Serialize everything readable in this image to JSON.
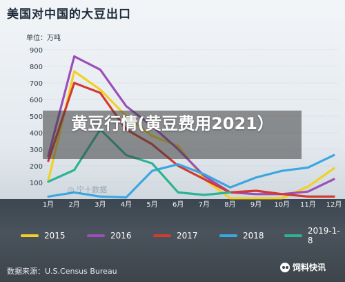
{
  "title": "美国对中国的大豆出口",
  "overlay_text": "黄豆行情(黄豆费用2021）",
  "watermark_text": "宁十数据",
  "source": "数据来源：U.S.Census Bureau",
  "brand": "饲料快讯",
  "chart_data": {
    "type": "line",
    "title": "美国对中国的大豆出口",
    "ylabel": "单位：万吨",
    "ylim": [
      0,
      900
    ],
    "yticks": [
      "100",
      "200",
      "300",
      "400",
      "500",
      "600",
      "700",
      "800",
      "900"
    ],
    "categories": [
      "1月",
      "2月",
      "3月",
      "4月",
      "5月",
      "6月",
      "7月",
      "8月",
      "9月",
      "10月",
      "11月",
      "12月"
    ],
    "series": [
      {
        "name": "2015",
        "color": "#f2d024",
        "values": [
          110,
          770,
          660,
          500,
          380,
          320,
          120,
          5,
          5,
          5,
          75,
          185
        ]
      },
      {
        "name": "2016",
        "color": "#9b4fb8",
        "values": [
          260,
          860,
          780,
          560,
          440,
          300,
          140,
          40,
          30,
          30,
          45,
          120
        ]
      },
      {
        "name": "2017",
        "color": "#d23a32",
        "values": [
          230,
          700,
          640,
          420,
          330,
          200,
          120,
          40,
          50,
          30,
          15,
          15
        ]
      },
      {
        "name": "2018",
        "color": "#3ca6e0",
        "values": [
          15,
          40,
          15,
          10,
          170,
          210,
          150,
          70,
          130,
          170,
          190,
          265
        ]
      },
      {
        "name": "2019-1-8",
        "color": "#2bb394",
        "values": [
          105,
          175,
          420,
          265,
          215,
          40,
          25,
          40,
          null,
          null,
          null,
          null
        ]
      }
    ],
    "grid": true,
    "legend": "bottom"
  }
}
